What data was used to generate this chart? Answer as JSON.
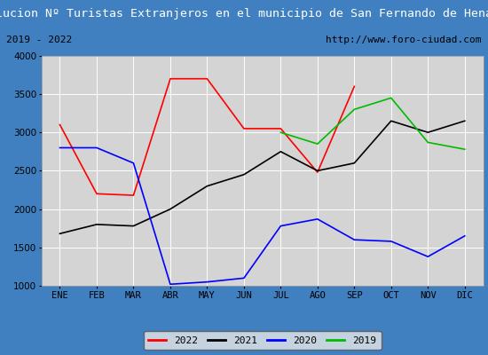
{
  "title": "Evolucion Nº Turistas Extranjeros en el municipio de San Fernando de Henares",
  "subtitle_left": "2019 - 2022",
  "subtitle_right": "http://www.foro-ciudad.com",
  "ylim": [
    1000,
    4000
  ],
  "months": [
    "ENE",
    "FEB",
    "MAR",
    "ABR",
    "MAY",
    "JUN",
    "JUL",
    "AGO",
    "SEP",
    "OCT",
    "NOV",
    "DIC"
  ],
  "series_2022": [
    3100,
    2200,
    2180,
    3700,
    3700,
    3050,
    3050,
    2480,
    3600,
    null,
    null,
    null
  ],
  "series_2021": [
    1680,
    1800,
    1780,
    2000,
    2300,
    2450,
    2750,
    2500,
    2600,
    3150,
    3000,
    3150
  ],
  "series_2020": [
    2800,
    2800,
    2600,
    1020,
    1050,
    1100,
    1780,
    1870,
    1600,
    1580,
    1380,
    1650
  ],
  "series_2019": [
    null,
    null,
    null,
    null,
    null,
    null,
    3000,
    2850,
    3300,
    3450,
    2870,
    2780
  ],
  "color_2022": "#ff0000",
  "color_2021": "#000000",
  "color_2020": "#0000ff",
  "color_2019": "#00bb00",
  "title_bg": "#4080c0",
  "title_color": "#ffffff",
  "subtitle_bg": "#f0f0f0",
  "plot_bg": "#d4d4d4",
  "grid_color": "#ffffff",
  "outer_bg": "#4080c0",
  "title_fontsize": 9.5,
  "subtitle_fontsize": 8,
  "tick_fontsize": 7.5,
  "legend_fontsize": 8
}
